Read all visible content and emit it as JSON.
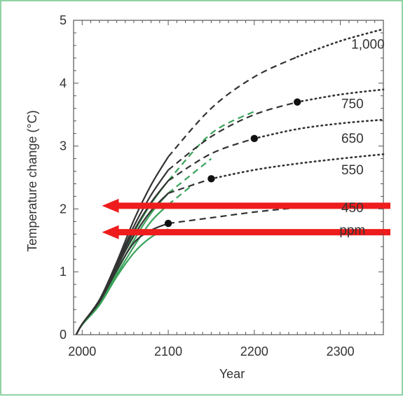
{
  "chart_data": {
    "type": "line",
    "xlabel": "Year",
    "ylabel": "Temperature change (°C)",
    "xlim": [
      1990,
      2350
    ],
    "ylim": [
      0,
      5
    ],
    "x_ticks": [
      2000,
      2100,
      2200,
      2300
    ],
    "y_ticks": [
      0,
      1,
      2,
      3,
      4,
      5
    ],
    "scenario_labels": [
      "1,000",
      "750",
      "650",
      "550",
      "450",
      "ppm"
    ],
    "series": [
      {
        "name": "1,000",
        "color": "#333333",
        "solid_x": [
          1993,
          2000,
          2020,
          2040,
          2060,
          2080,
          2100
        ],
        "solid_y": [
          0,
          0.17,
          0.55,
          1.15,
          1.82,
          2.38,
          2.83
        ],
        "dashed_x": [
          2100,
          2150,
          2200,
          2250
        ],
        "dashed_y": [
          2.83,
          3.6,
          4.1,
          4.42
        ],
        "dotted_x": [
          2250,
          2300,
          2350
        ],
        "dotted_y": [
          4.42,
          4.67,
          4.86
        ]
      },
      {
        "name": "750",
        "color": "#333333",
        "solid_x": [
          1993,
          2000,
          2020,
          2040,
          2060,
          2080,
          2100
        ],
        "solid_y": [
          0,
          0.17,
          0.55,
          1.12,
          1.72,
          2.22,
          2.62
        ],
        "dashed_x": [
          2100,
          2150,
          2200,
          2250
        ],
        "dashed_y": [
          2.62,
          3.15,
          3.5,
          3.7
        ],
        "dotted_x": [
          2250,
          2300,
          2350
        ],
        "dotted_y": [
          3.7,
          3.82,
          3.9
        ]
      },
      {
        "name": "650",
        "color": "#333333",
        "solid_x": [
          1993,
          2000,
          2020,
          2040,
          2060,
          2080,
          2100
        ],
        "solid_y": [
          0,
          0.17,
          0.55,
          1.1,
          1.65,
          2.1,
          2.45
        ],
        "dashed_x": [
          2100,
          2150,
          2200
        ],
        "dashed_y": [
          2.45,
          2.88,
          3.12
        ],
        "dotted_x": [
          2200,
          2250,
          2300,
          2350
        ],
        "dotted_y": [
          3.12,
          3.27,
          3.36,
          3.42
        ]
      },
      {
        "name": "550",
        "color": "#333333",
        "solid_x": [
          1993,
          2000,
          2020,
          2040,
          2060,
          2080,
          2100
        ],
        "solid_y": [
          0,
          0.17,
          0.54,
          1.07,
          1.57,
          1.97,
          2.25
        ],
        "dashed_x": [
          2100,
          2150
        ],
        "dashed_y": [
          2.25,
          2.48
        ],
        "dotted_x": [
          2150,
          2200,
          2250,
          2300,
          2350
        ],
        "dotted_y": [
          2.48,
          2.62,
          2.72,
          2.8,
          2.87
        ]
      },
      {
        "name": "450",
        "color": "#333333",
        "solid_x": [
          1993,
          2000,
          2020,
          2040,
          2060,
          2080,
          2100
        ],
        "solid_y": [
          0,
          0.17,
          0.52,
          1.02,
          1.46,
          1.66,
          1.77
        ],
        "dashed_x": [
          2100,
          2150,
          2200,
          2250,
          2300
        ],
        "dashed_y": [
          1.77,
          1.86,
          1.95,
          2.02,
          2.08
        ],
        "dotted_x": [],
        "dotted_y": []
      },
      {
        "name": "750-green",
        "color": "#3aa35a",
        "solid_x": [
          1993,
          2000,
          2020,
          2040,
          2060,
          2080,
          2100
        ],
        "solid_y": [
          0,
          0.16,
          0.5,
          1.05,
          1.62,
          2.08,
          2.45
        ],
        "dashed_x": [
          2100,
          2150,
          2200
        ],
        "dashed_y": [
          2.45,
          3.2,
          3.55
        ],
        "dotted_x": [],
        "dotted_y": []
      },
      {
        "name": "650-green",
        "color": "#3aa35a",
        "solid_x": [
          1993,
          2000,
          2020,
          2040,
          2060,
          2080,
          2100
        ],
        "solid_y": [
          0,
          0.16,
          0.49,
          1.0,
          1.5,
          1.93,
          2.25
        ],
        "dashed_x": [
          2100,
          2150
        ],
        "dashed_y": [
          2.25,
          2.8
        ],
        "dotted_x": [],
        "dotted_y": []
      },
      {
        "name": "550-green",
        "color": "#3aa35a",
        "solid_x": [
          1993,
          2000,
          2020,
          2040,
          2060,
          2080,
          2100
        ],
        "solid_y": [
          0,
          0.16,
          0.48,
          0.95,
          1.4,
          1.8,
          2.07
        ],
        "dashed_x": [
          2100,
          2130
        ],
        "dashed_y": [
          2.07,
          2.4
        ],
        "dotted_x": [],
        "dotted_y": []
      },
      {
        "name": "450-green",
        "color": "#3aa35a",
        "solid_x": [
          1993,
          2000,
          2020,
          2040,
          2060,
          2080,
          2100
        ],
        "solid_y": [
          0,
          0.16,
          0.47,
          0.92,
          1.3,
          1.55,
          1.68
        ],
        "dashed_x": [],
        "dashed_y": [],
        "dotted_x": [],
        "dotted_y": []
      }
    ],
    "stabilization_points": [
      {
        "x": 2100,
        "y": 1.77
      },
      {
        "x": 2150,
        "y": 2.48
      },
      {
        "x": 2200,
        "y": 3.12
      },
      {
        "x": 2250,
        "y": 3.7
      }
    ],
    "arrows": [
      {
        "x_start": 2350,
        "x_end": 2080,
        "y": 2.05,
        "color": "#ee1c1c"
      },
      {
        "x_start": 2350,
        "x_end": 2080,
        "y": 1.63,
        "color": "#ee1c1c"
      }
    ],
    "grid": false
  }
}
